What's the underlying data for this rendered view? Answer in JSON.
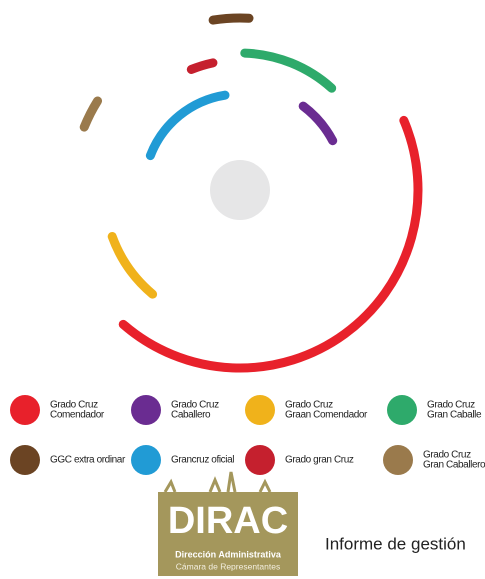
{
  "chart_data": {
    "type": "radialbar",
    "series": [
      {
        "name": [
          "Grado Cruz",
          "Comendador"
        ],
        "color": "#e8212b",
        "values": [
          154
        ]
      },
      {
        "name": [
          "Grado Cruz",
          "Caballero"
        ],
        "color": "#6a2c91",
        "values": [
          25
        ]
      },
      {
        "name": [
          "Grado Cruz",
          "Graan Comendador"
        ],
        "color": "#f0b21b",
        "values": [
          30
        ]
      },
      {
        "name": [
          "Grado Cruz",
          "Gran Caballe"
        ],
        "color": "#2eaa6b",
        "values": [
          40
        ]
      },
      {
        "name": [
          "GGC extra ordinar"
        ],
        "color": "#6b4423",
        "values": [
          12
        ]
      },
      {
        "name": [
          "Grancruz oficial"
        ],
        "color": "#219bd5",
        "values": [
          60
        ]
      },
      {
        "name": [
          "Grado gran Cruz"
        ],
        "color": "#c5202e",
        "values": [
          10
        ]
      },
      {
        "name": [
          "Grado Cruz",
          "Gran Caballero"
        ],
        "color": "#9a7a4c",
        "values": [
          10
        ]
      }
    ]
  },
  "logo": {
    "title": "DIRAC",
    "line1": "Dirección Administrativa",
    "line2": "Cámara de Representantes"
  },
  "footer": "Informe de gestión"
}
